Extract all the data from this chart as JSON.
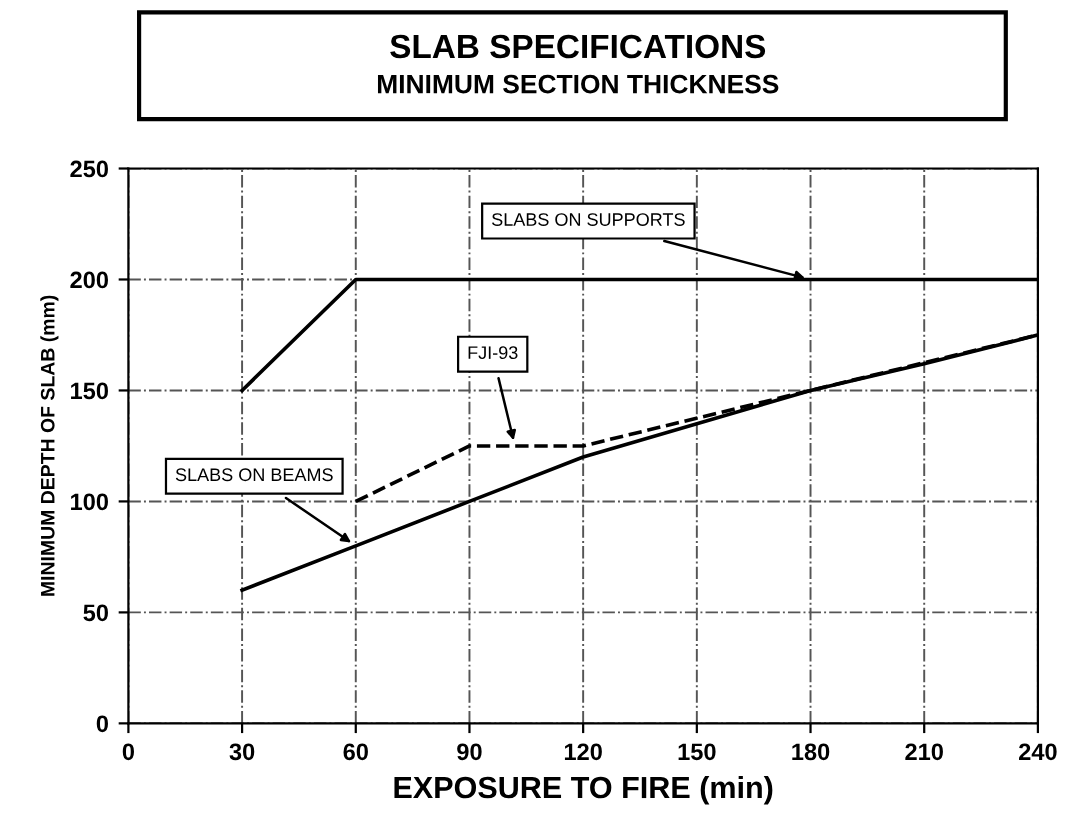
{
  "chart_data": {
    "type": "line",
    "title": "SLAB SPECIFICATIONS",
    "subtitle": "MINIMUM SECTION THICKNESS",
    "xlabel": "EXPOSURE TO FIRE (min)",
    "ylabel": "MINIMUM DEPTH OF SLAB (mm)",
    "series": [
      {
        "color": "#000000",
        "line_style": "solid",
        "x": [
          30,
          60,
          240
        ],
        "values": [
          150,
          200,
          200
        ]
      },
      {
        "color": "#000000",
        "line_style": "dashed",
        "x": [
          60,
          90,
          120,
          180,
          240
        ],
        "values": [
          100,
          125,
          125,
          150,
          175
        ]
      },
      {
        "color": "#000000",
        "line_style": "solid",
        "x": [
          30,
          60,
          90,
          120,
          180,
          210,
          240
        ],
        "values": [
          60,
          80,
          100,
          120,
          150,
          162,
          175
        ]
      }
    ],
    "annotations": [
      {
        "text": "SLABS ON SUPPORTS",
        "x": 180,
        "y": 200
      },
      {
        "text": "FJI-93",
        "x": 102,
        "y": 125
      },
      {
        "text": "SLABS ON BEAMS",
        "x": 60,
        "y": 80
      }
    ],
    "xlim": [
      0,
      240
    ],
    "ylim": [
      0,
      250
    ],
    "xticks": [
      0,
      30,
      60,
      90,
      120,
      150,
      180,
      210,
      240
    ],
    "yticks": [
      0,
      50,
      100,
      150,
      200,
      250
    ],
    "grid": true,
    "marker": "none"
  }
}
